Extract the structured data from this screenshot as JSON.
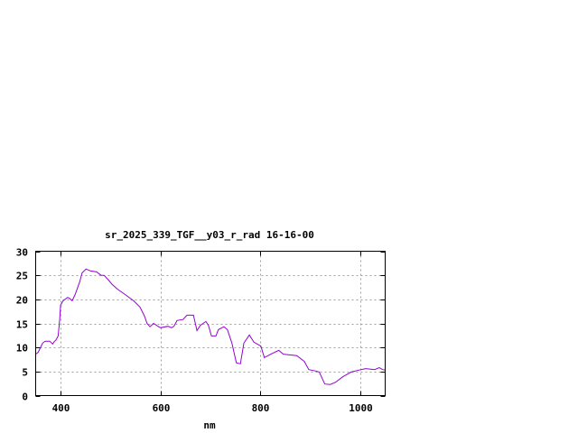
{
  "chart_data": {
    "type": "line",
    "title": "sr_2025_339_TGF__y03_r_rad 16-16-00",
    "xlabel": "nm",
    "ylabel": "",
    "xlim": [
      350,
      1050
    ],
    "ylim": [
      0,
      30
    ],
    "xticks": [
      400,
      600,
      800,
      1000
    ],
    "yticks": [
      0,
      5,
      10,
      15,
      20,
      25,
      30
    ],
    "grid": true,
    "line_color": "#9400d3",
    "series": [
      {
        "x": [
          350,
          355,
          364,
          369,
          378,
          384,
          387,
          391,
          395,
          398,
          400,
          405,
          414,
          418,
          423,
          429,
          438,
          443,
          451,
          460,
          472,
          481,
          487,
          496,
          503,
          514,
          532,
          546,
          559,
          568,
          573,
          579,
          586,
          595,
          600,
          615,
          622,
          627,
          633,
          645,
          653,
          666,
          673,
          680,
          691,
          696,
          702,
          711,
          716,
          727,
          734,
          743,
          752,
          760,
          767,
          778,
          787,
          801,
          808,
          821,
          837,
          846,
          873,
          888,
          897,
          911,
          918,
          929,
          940,
          951,
          965,
          982,
          998,
          1011,
          1029,
          1038,
          1045,
          1050
        ],
        "y": [
          8.6,
          9.0,
          10.9,
          11.3,
          11.3,
          10.7,
          11.2,
          11.6,
          12.4,
          15.6,
          18.8,
          19.7,
          20.4,
          20.2,
          19.7,
          21.0,
          23.6,
          25.5,
          26.3,
          25.9,
          25.7,
          25.0,
          25.0,
          24.0,
          23.1,
          22.1,
          20.8,
          19.7,
          18.4,
          16.5,
          15.0,
          14.3,
          15.0,
          14.4,
          14.1,
          14.4,
          14.1,
          14.4,
          15.6,
          15.8,
          16.7,
          16.7,
          13.5,
          14.6,
          15.4,
          14.6,
          12.4,
          12.4,
          13.7,
          14.3,
          13.7,
          10.9,
          6.8,
          6.6,
          10.9,
          12.6,
          11.1,
          10.3,
          7.9,
          8.6,
          9.4,
          8.6,
          8.3,
          7.1,
          5.4,
          5.1,
          4.9,
          2.4,
          2.3,
          2.8,
          3.9,
          4.9,
          5.3,
          5.6,
          5.4,
          5.8,
          5.4,
          5.3
        ]
      }
    ]
  }
}
